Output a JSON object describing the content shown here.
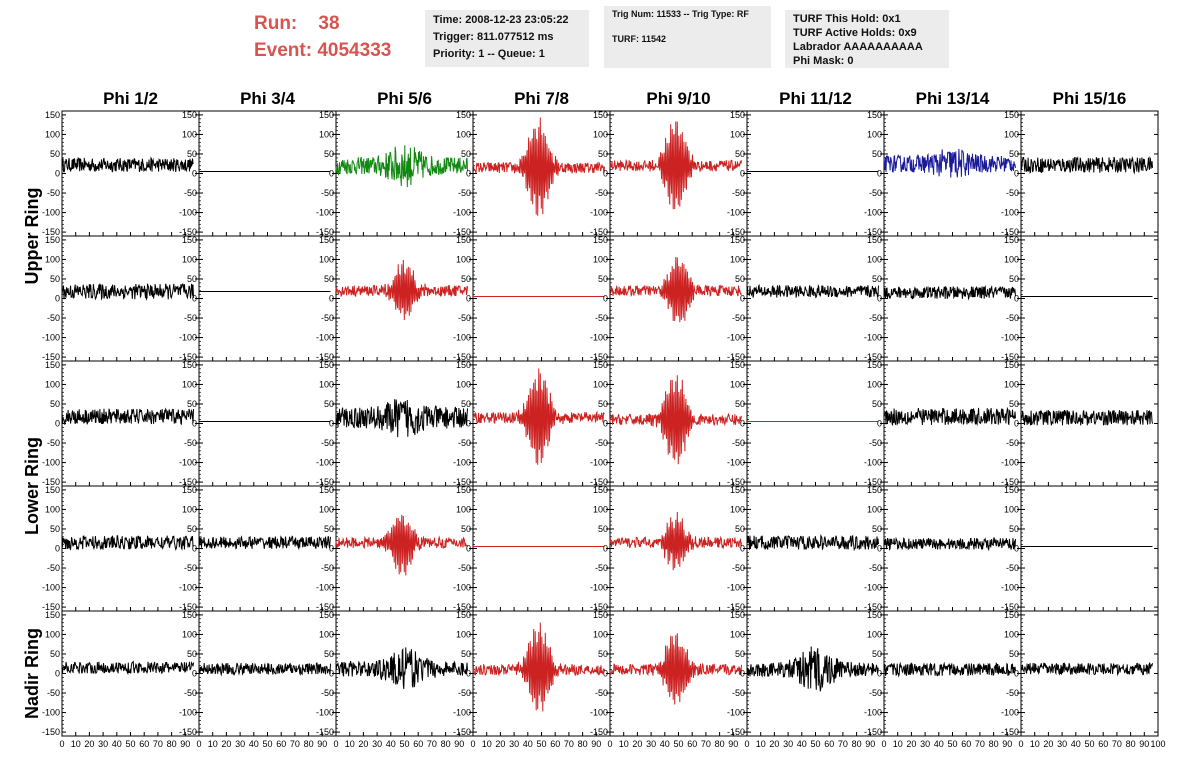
{
  "header": {
    "run_label": "Run:",
    "run_value": "38",
    "event_label": "Event:",
    "event_value": "4054333",
    "box1": [
      "Time: 2008-12-23 23:05:22",
      "Trigger: 811.077512 ms",
      "Priority: 1 -- Queue: 1"
    ],
    "box2": [
      "Trig Num: 11533 -- Trig Type: RF",
      "TURF: 11542"
    ],
    "box3": [
      "TURF This Hold: 0x1",
      "TURF Active Holds: 0x9",
      "Labrador AAAAAAAAAA",
      "Phi Mask: 0"
    ]
  },
  "colors": {
    "black": "#000000",
    "red": "#cc2222",
    "green": "#118811",
    "blue": "#1a1a99",
    "header_text": "#d9534f",
    "box_bg": "#ececec"
  },
  "chart_data": {
    "type": "line",
    "columns": [
      "Phi 1/2",
      "Phi 3/4",
      "Phi 5/6",
      "Phi 7/8",
      "Phi 9/10",
      "Phi 11/12",
      "Phi 13/14",
      "Phi 15/16"
    ],
    "ring_labels": [
      "Upper Ring",
      "Lower Ring",
      "Nadir Ring"
    ],
    "ylim": [
      -160,
      160
    ],
    "yticks": [
      -150,
      -100,
      -50,
      0,
      50,
      100,
      150
    ],
    "xlim": [
      0,
      100
    ],
    "xticks": [
      0,
      10,
      20,
      30,
      40,
      50,
      60,
      70,
      80,
      90,
      100
    ],
    "rows": [
      {
        "cells": [
          {
            "kind": "noise",
            "color": "black",
            "amp": 18,
            "offset": 22
          },
          {
            "kind": "flat",
            "color": "black",
            "offset": 5
          },
          {
            "kind": "noise",
            "color": "green",
            "amp": 22,
            "offset": 20,
            "burst": 35
          },
          {
            "kind": "pulse",
            "color": "red",
            "amp": 125,
            "offset": 15,
            "center": 48
          },
          {
            "kind": "pulse",
            "color": "red",
            "amp": 120,
            "offset": 20,
            "center": 48
          },
          {
            "kind": "flat",
            "color": "black",
            "offset": 5
          },
          {
            "kind": "noise",
            "color": "blue",
            "amp": 22,
            "offset": 25,
            "burst": 20
          },
          {
            "kind": "noise",
            "color": "black",
            "amp": 20,
            "offset": 22
          }
        ]
      },
      {
        "cells": [
          {
            "kind": "noise",
            "color": "black",
            "amp": 20,
            "offset": 18
          },
          {
            "kind": "flat",
            "color": "black",
            "offset": 18
          },
          {
            "kind": "pulse",
            "color": "red",
            "amp": 75,
            "offset": 20,
            "center": 50
          },
          {
            "kind": "flat",
            "color": "red",
            "offset": 5
          },
          {
            "kind": "pulse",
            "color": "red",
            "amp": 85,
            "offset": 20,
            "center": 50
          },
          {
            "kind": "noise",
            "color": "black",
            "amp": 16,
            "offset": 18
          },
          {
            "kind": "noise",
            "color": "black",
            "amp": 16,
            "offset": 15
          },
          {
            "kind": "flat",
            "color": "black",
            "offset": 5
          }
        ]
      },
      {
        "cells": [
          {
            "kind": "noise",
            "color": "black",
            "amp": 20,
            "offset": 18
          },
          {
            "kind": "flat",
            "color": "black",
            "offset": 5
          },
          {
            "kind": "noise",
            "color": "black",
            "amp": 28,
            "offset": 15,
            "burst": 25
          },
          {
            "kind": "pulse",
            "color": "red",
            "amp": 125,
            "offset": 15,
            "center": 48
          },
          {
            "kind": "pulse",
            "color": "red",
            "amp": 120,
            "offset": 10,
            "center": 48
          },
          {
            "kind": "flat",
            "color": "green",
            "offset": 5
          },
          {
            "kind": "noise",
            "color": "black",
            "amp": 22,
            "offset": 18
          },
          {
            "kind": "noise",
            "color": "black",
            "amp": 20,
            "offset": 15
          }
        ]
      },
      {
        "cells": [
          {
            "kind": "noise",
            "color": "black",
            "amp": 18,
            "offset": 15
          },
          {
            "kind": "noise",
            "color": "black",
            "amp": 16,
            "offset": 15
          },
          {
            "kind": "pulse",
            "color": "red",
            "amp": 80,
            "offset": 15,
            "center": 48
          },
          {
            "kind": "flat",
            "color": "red",
            "offset": 5
          },
          {
            "kind": "pulse",
            "color": "red",
            "amp": 70,
            "offset": 15,
            "center": 48
          },
          {
            "kind": "noise",
            "color": "black",
            "amp": 18,
            "offset": 15
          },
          {
            "kind": "noise",
            "color": "black",
            "amp": 15,
            "offset": 12
          },
          {
            "kind": "flat",
            "color": "black",
            "offset": 5
          }
        ]
      },
      {
        "cells": [
          {
            "kind": "noise",
            "color": "black",
            "amp": 15,
            "offset": 15
          },
          {
            "kind": "noise",
            "color": "black",
            "amp": 15,
            "offset": 12
          },
          {
            "kind": "noise",
            "color": "black",
            "amp": 20,
            "offset": 12,
            "burst": 35
          },
          {
            "kind": "pulse",
            "color": "red",
            "amp": 110,
            "offset": 10,
            "center": 48
          },
          {
            "kind": "pulse",
            "color": "red",
            "amp": 95,
            "offset": 10,
            "center": 48
          },
          {
            "kind": "noise",
            "color": "black",
            "amp": 18,
            "offset": 10,
            "burst": 45
          },
          {
            "kind": "noise",
            "color": "black",
            "amp": 16,
            "offset": 10
          },
          {
            "kind": "noise",
            "color": "black",
            "amp": 15,
            "offset": 12
          }
        ]
      }
    ]
  }
}
